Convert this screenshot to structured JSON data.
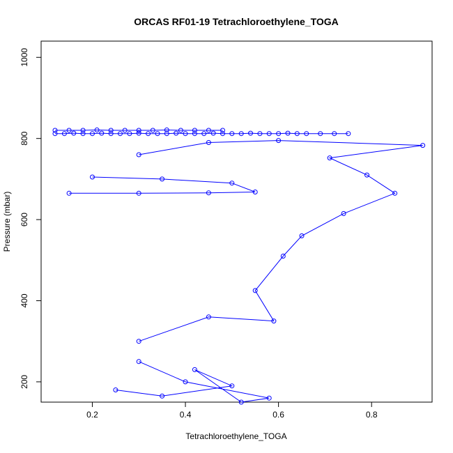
{
  "chart_data": {
    "type": "line",
    "title": "ORCAS RF01-19 Tetrachloroethylene_TOGA",
    "xlabel": "Tetrachloroethylene_TOGA",
    "ylabel": "Pressure (mbar)",
    "xlim": [
      0.09,
      0.93
    ],
    "ylim": [
      1040,
      150
    ],
    "y_reversed": true,
    "x_ticks": [
      0.2,
      0.4,
      0.6,
      0.8
    ],
    "x_tick_labels": [
      "0.2",
      "0.4",
      "0.6",
      "0.8"
    ],
    "y_ticks": [
      200,
      400,
      600,
      800,
      1000
    ],
    "y_tick_labels": [
      "200",
      "400",
      "600",
      "800",
      "1000"
    ],
    "grid": false,
    "marker": "open-circle",
    "series_color": "#0000ff",
    "background": "#ffffff",
    "series": [
      {
        "x": [
          0.12,
          0.14,
          0.16,
          0.18,
          0.2,
          0.22,
          0.24,
          0.26,
          0.28,
          0.3,
          0.32,
          0.34,
          0.36,
          0.38,
          0.4,
          0.42,
          0.44,
          0.46,
          0.48,
          0.5,
          0.52,
          0.54,
          0.56,
          0.58,
          0.6,
          0.62,
          0.64,
          0.66,
          0.69,
          0.72,
          0.75
        ],
        "y": [
          812,
          812,
          813,
          812,
          812,
          813,
          812,
          812,
          812,
          813,
          812,
          812,
          812,
          813,
          812,
          812,
          812,
          813,
          812,
          812,
          812,
          813,
          812,
          812,
          812,
          813,
          812,
          812,
          812,
          812,
          812
        ]
      },
      {
        "x": [
          0.12,
          0.15,
          0.18,
          0.21,
          0.24,
          0.27,
          0.3,
          0.33,
          0.36,
          0.39,
          0.42,
          0.45,
          0.48
        ],
        "y": [
          820,
          820,
          820,
          821,
          820,
          820,
          820,
          820,
          821,
          820,
          820,
          820,
          820
        ]
      },
      {
        "x": [
          0.3,
          0.45,
          0.59,
          0.55,
          0.61,
          0.65,
          0.74,
          0.85,
          0.79,
          0.71,
          0.91,
          0.6,
          0.45,
          0.3
        ],
        "y": [
          300,
          360,
          350,
          425,
          510,
          560,
          615,
          665,
          710,
          752,
          783,
          795,
          790,
          760
        ]
      },
      {
        "x": [
          0.25,
          0.35,
          0.5,
          0.42,
          0.52,
          0.58,
          0.4,
          0.3
        ],
        "y": [
          180,
          165,
          190,
          230,
          150,
          160,
          200,
          250
        ]
      },
      {
        "x": [
          0.15,
          0.3,
          0.45,
          0.55,
          0.5,
          0.35,
          0.2
        ],
        "y": [
          665,
          665,
          666,
          668,
          690,
          700,
          705
        ]
      }
    ]
  }
}
